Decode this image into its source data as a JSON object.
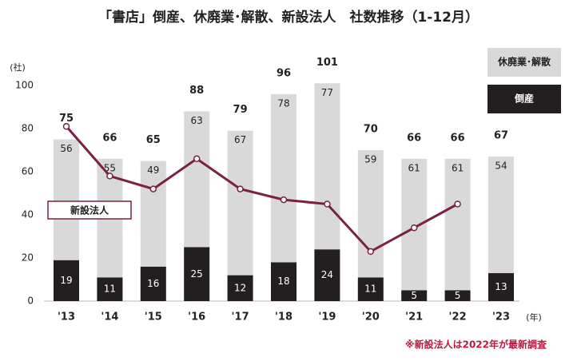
{
  "chart_data": {
    "type": "bar",
    "stacked": true,
    "title": "「書店」倒産、休廃業･解散、新設法人　社数推移（1-12月）",
    "y_unit": "(社)",
    "x_unit": "(年)",
    "footnote": "※新設法人は2022年が最新調査",
    "categories": [
      "'13",
      "'14",
      "'15",
      "'16",
      "'17",
      "'18",
      "'19",
      "'20",
      "'21",
      "'22",
      "'23"
    ],
    "series": [
      {
        "name": "倒産",
        "color": "#231f20",
        "values": [
          19,
          11,
          16,
          25,
          12,
          18,
          24,
          11,
          5,
          5,
          13
        ]
      },
      {
        "name": "休廃業･解散",
        "color": "#d9d9d9",
        "values": [
          56,
          55,
          49,
          63,
          67,
          78,
          77,
          59,
          61,
          61,
          54
        ]
      },
      {
        "name": "新設法人",
        "type": "line",
        "color": "#7b1f45",
        "values": [
          81,
          58,
          52,
          66,
          52,
          47,
          45,
          23,
          34,
          45,
          null
        ]
      }
    ],
    "totals": [
      75,
      66,
      65,
      88,
      79,
      96,
      101,
      70,
      66,
      66,
      67
    ],
    "ylim": [
      0,
      100
    ],
    "yticks": [
      0,
      20,
      40,
      60,
      80,
      100
    ],
    "grid": false
  }
}
